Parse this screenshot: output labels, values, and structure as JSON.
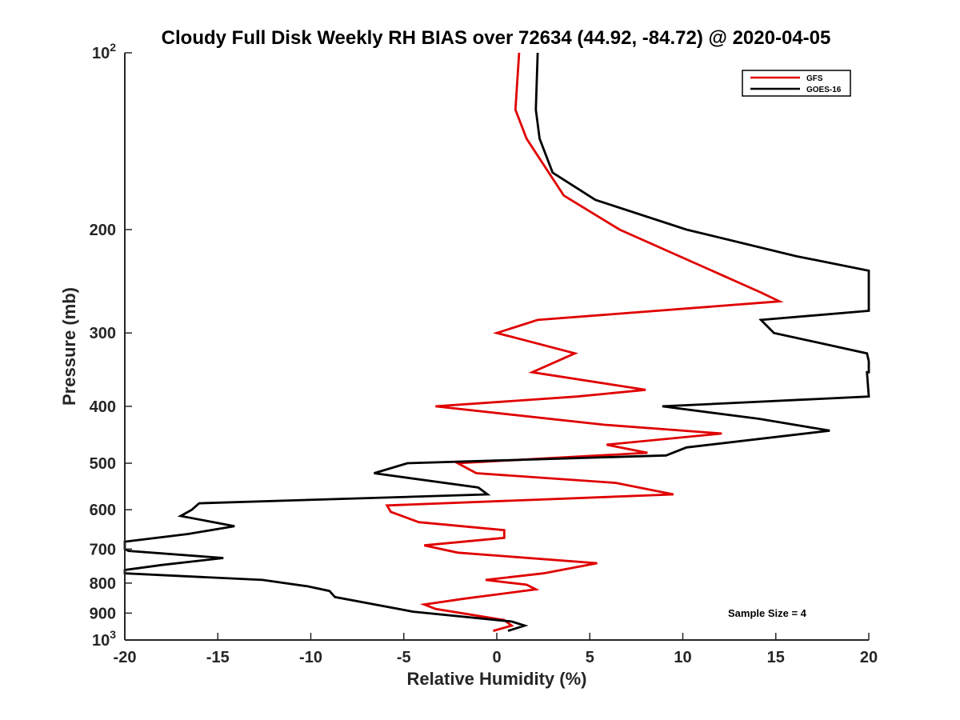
{
  "chart_data": {
    "type": "line",
    "title": "Cloudy Full Disk Weekly RH BIAS over 72634 (44.92, -84.72) @ 2020-04-05",
    "xlabel": "Relative Humidity (%)",
    "ylabel": "Pressure (mb)",
    "xlim": [
      -20,
      20
    ],
    "ylim": [
      100,
      1000
    ],
    "yscale": "log",
    "yreversed": true,
    "grid": false,
    "legend_position": "top-right",
    "annotation": "Sample Size = 4",
    "xticks": [
      -20,
      -15,
      -10,
      -5,
      0,
      5,
      10,
      15,
      20
    ],
    "xtick_labels": [
      "-20",
      "-15",
      "-10",
      "-5",
      "0",
      "5",
      "10",
      "15",
      "20"
    ],
    "yticks": [
      100,
      200,
      300,
      400,
      500,
      600,
      700,
      800,
      900,
      1000
    ],
    "ytick_labels": [
      {
        "base": "10",
        "exp": "2"
      },
      {
        "base": "200",
        "exp": ""
      },
      {
        "base": "300",
        "exp": ""
      },
      {
        "base": "400",
        "exp": ""
      },
      {
        "base": "500",
        "exp": ""
      },
      {
        "base": "600",
        "exp": ""
      },
      {
        "base": "700",
        "exp": ""
      },
      {
        "base": "800",
        "exp": ""
      },
      {
        "base": "900",
        "exp": ""
      },
      {
        "base": "10",
        "exp": "3"
      }
    ],
    "series": [
      {
        "name": "GFS",
        "color": "#e00000",
        "points": [
          [
            1.2,
            100
          ],
          [
            1.0,
            125
          ],
          [
            1.6,
            140
          ],
          [
            3.6,
            175
          ],
          [
            6.6,
            200
          ],
          [
            14.2,
            256
          ],
          [
            15.2,
            265
          ],
          [
            2.2,
            285
          ],
          [
            0.0,
            300
          ],
          [
            4.2,
            325
          ],
          [
            1.9,
            350
          ],
          [
            8.0,
            375
          ],
          [
            4.3,
            385
          ],
          [
            -3.3,
            400
          ],
          [
            5.8,
            430
          ],
          [
            12.1,
            445
          ],
          [
            5.9,
            465
          ],
          [
            8.1,
            480
          ],
          [
            -2.1,
            500
          ],
          [
            -1.1,
            520
          ],
          [
            6.4,
            540
          ],
          [
            9.5,
            565
          ],
          [
            -5.9,
            590
          ],
          [
            -5.7,
            605
          ],
          [
            -4.2,
            630
          ],
          [
            0.4,
            650
          ],
          [
            0.4,
            670
          ],
          [
            -3.9,
            690
          ],
          [
            -2.1,
            710
          ],
          [
            5.4,
            740
          ],
          [
            2.5,
            770
          ],
          [
            -0.6,
            790
          ],
          [
            1.6,
            805
          ],
          [
            2.1,
            820
          ],
          [
            -1.7,
            850
          ],
          [
            -3.9,
            870
          ],
          [
            -3.3,
            885
          ],
          [
            0.4,
            925
          ],
          [
            0.8,
            945
          ],
          [
            -0.2,
            965
          ]
        ]
      },
      {
        "name": "GOES-16",
        "color": "#000000",
        "points": [
          [
            2.2,
            100
          ],
          [
            2.1,
            125
          ],
          [
            2.3,
            140
          ],
          [
            3.0,
            160
          ],
          [
            5.3,
            178
          ],
          [
            10.2,
            200
          ],
          [
            16.1,
            222
          ],
          [
            20.0,
            235
          ],
          [
            20.0,
            275
          ],
          [
            14.2,
            285
          ],
          [
            14.9,
            300
          ],
          [
            19.9,
            325
          ],
          [
            20.0,
            335
          ],
          [
            20.0,
            350
          ],
          [
            19.9,
            350
          ],
          [
            20.0,
            385
          ],
          [
            8.9,
            400
          ],
          [
            14.1,
            420
          ],
          [
            17.9,
            440
          ],
          [
            10.2,
            470
          ],
          [
            9.1,
            485
          ],
          [
            -4.8,
            500
          ],
          [
            -6.6,
            520
          ],
          [
            -1.0,
            550
          ],
          [
            -0.5,
            565
          ],
          [
            -16.0,
            585
          ],
          [
            -16.4,
            600
          ],
          [
            -17.0,
            615
          ],
          [
            -14.1,
            640
          ],
          [
            -16.6,
            660
          ],
          [
            -20.0,
            680
          ],
          [
            -20.0,
            700
          ],
          [
            -19.8,
            705
          ],
          [
            -14.7,
            725
          ],
          [
            -18.0,
            745
          ],
          [
            -20.0,
            760
          ],
          [
            -20.0,
            770
          ],
          [
            -12.6,
            790
          ],
          [
            -10.2,
            810
          ],
          [
            -9.0,
            825
          ],
          [
            -8.7,
            845
          ],
          [
            -4.5,
            895
          ],
          [
            0.8,
            930
          ],
          [
            1.5,
            945
          ],
          [
            0.6,
            965
          ]
        ]
      }
    ]
  }
}
